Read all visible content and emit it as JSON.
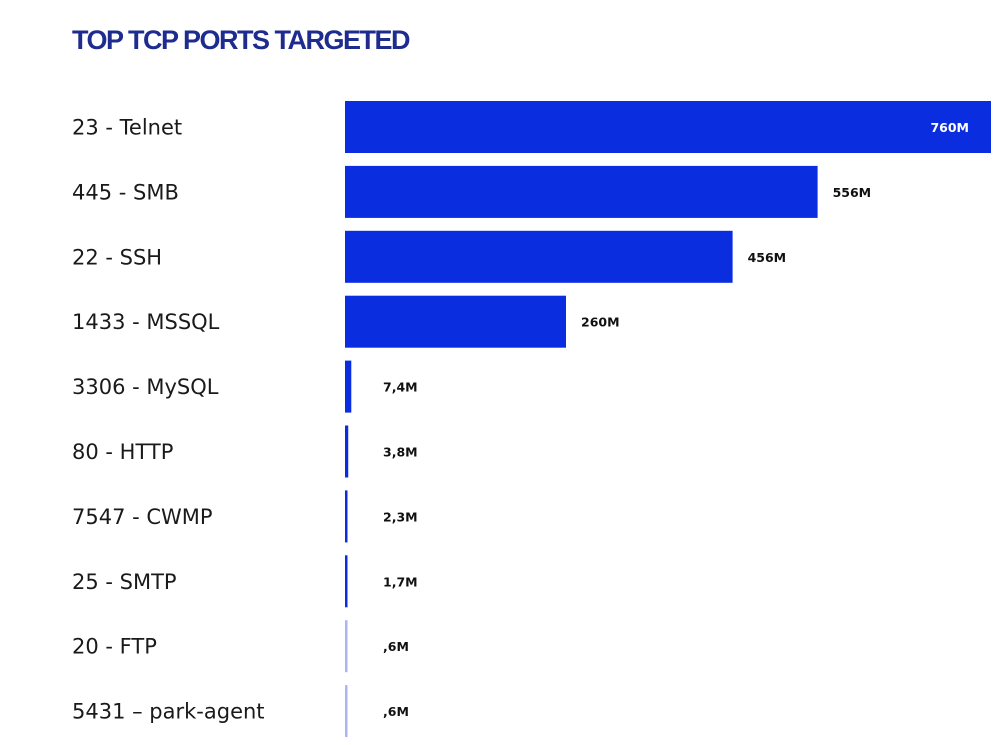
{
  "chart_data": {
    "type": "bar",
    "orientation": "horizontal",
    "title": "TOP TCP PORTS TARGETED",
    "categories": [
      "23 - Telnet",
      "445 - SMB",
      "22 - SSH",
      "1433 - MSSQL",
      "3306 - MySQL",
      "80 - HTTP",
      "7547 - CWMP",
      "25 - SMTP",
      "20 - FTP",
      "5431 – park-agent"
    ],
    "values": [
      760,
      556,
      456,
      260,
      7.4,
      3.8,
      2.3,
      1.7,
      0.6,
      0.6
    ],
    "value_labels": [
      "760M",
      "556M",
      "456M",
      "260M",
      "7,4M",
      "3,8M",
      "2,3M",
      "1,7M",
      ",6M",
      ",6M"
    ],
    "unit": "M",
    "xlim": [
      0,
      760
    ],
    "grid": false,
    "colors": {
      "bar": "#0b2de0",
      "title": "#1e2b8f",
      "label_on_bar": "#ffffff",
      "label": "#111111"
    }
  }
}
